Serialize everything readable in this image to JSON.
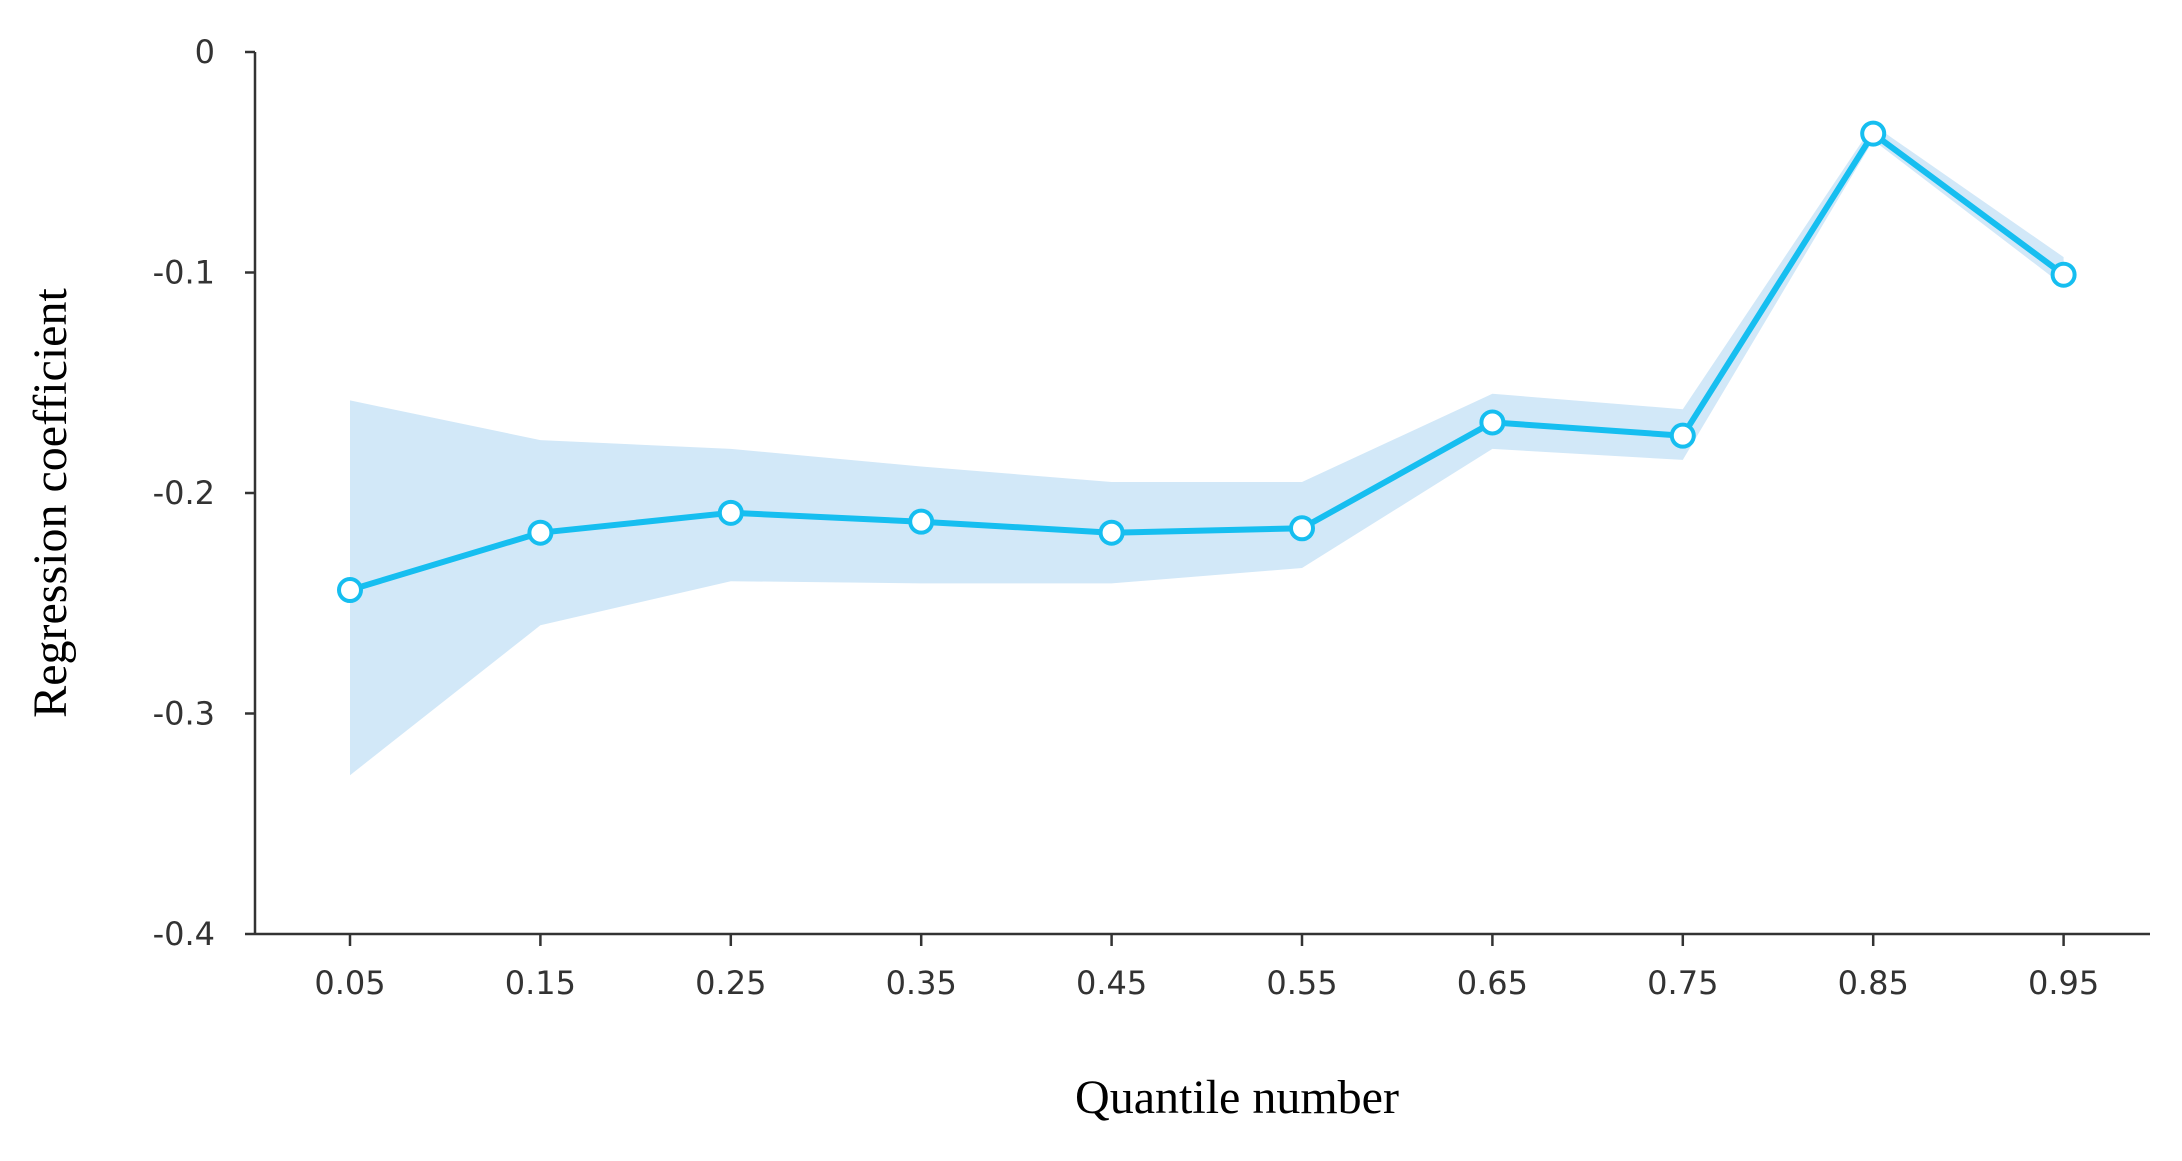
{
  "chart_data": {
    "type": "line",
    "title": "",
    "xlabel": "Quantile number",
    "ylabel": "Regression coefficient",
    "categories": [
      "0.05",
      "0.15",
      "0.25",
      "0.35",
      "0.45",
      "0.55",
      "0.65",
      "0.75",
      "0.85",
      "0.95"
    ],
    "series": [
      {
        "values": [
          -0.244,
          -0.218,
          -0.209,
          -0.213,
          -0.218,
          -0.216,
          -0.168,
          -0.174,
          -0.037,
          -0.101
        ],
        "lower": [
          -0.328,
          -0.26,
          -0.24,
          -0.241,
          -0.241,
          -0.234,
          -0.18,
          -0.185,
          -0.04,
          -0.106
        ],
        "upper": [
          -0.158,
          -0.176,
          -0.18,
          -0.188,
          -0.195,
          -0.195,
          -0.155,
          -0.162,
          -0.033,
          -0.093
        ]
      }
    ],
    "yticks": [
      "0",
      "-0.1",
      "-0.2",
      "-0.3",
      "-0.4"
    ],
    "ylim": [
      -0.4,
      0
    ],
    "grid": false,
    "legend": "none",
    "colors": {
      "line": "#16BEF0",
      "band": "#D2E8F8",
      "axis": "#333333",
      "marker_fill": "#FFFFFF"
    }
  }
}
